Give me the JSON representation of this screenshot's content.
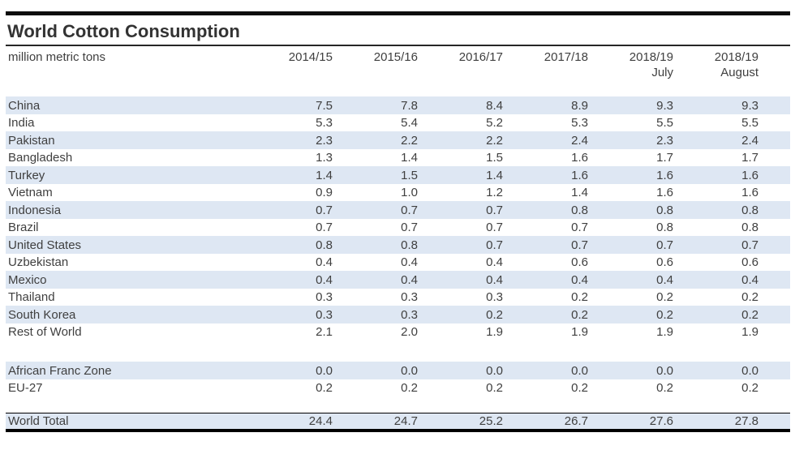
{
  "title": "World Cotton Consumption",
  "colors": {
    "row_shade": "#dee7f3",
    "text": "#3f3f3f",
    "rule_line": "#000000"
  },
  "chart_data": {
    "type": "table",
    "title": "World Cotton Consumption",
    "unit": "million metric tons",
    "column_headers": [
      {
        "year": "2014/15",
        "sub": ""
      },
      {
        "year": "2015/16",
        "sub": ""
      },
      {
        "year": "2016/17",
        "sub": ""
      },
      {
        "year": "2017/18",
        "sub": ""
      },
      {
        "year": "2018/19",
        "sub": "July"
      },
      {
        "year": "2018/19",
        "sub": "August"
      }
    ],
    "rows": [
      {
        "type": "data",
        "label": "China",
        "values": [
          "7.5",
          "7.8",
          "8.4",
          "8.9",
          "9.3",
          "9.3"
        ]
      },
      {
        "type": "data",
        "label": "India",
        "values": [
          "5.3",
          "5.4",
          "5.2",
          "5.3",
          "5.5",
          "5.5"
        ]
      },
      {
        "type": "data",
        "label": "Pakistan",
        "values": [
          "2.3",
          "2.2",
          "2.2",
          "2.4",
          "2.3",
          "2.4"
        ]
      },
      {
        "type": "data",
        "label": "Bangladesh",
        "values": [
          "1.3",
          "1.4",
          "1.5",
          "1.6",
          "1.7",
          "1.7"
        ]
      },
      {
        "type": "data",
        "label": "Turkey",
        "values": [
          "1.4",
          "1.5",
          "1.4",
          "1.6",
          "1.6",
          "1.6"
        ]
      },
      {
        "type": "data",
        "label": "Vietnam",
        "values": [
          "0.9",
          "1.0",
          "1.2",
          "1.4",
          "1.6",
          "1.6"
        ]
      },
      {
        "type": "data",
        "label": "Indonesia",
        "values": [
          "0.7",
          "0.7",
          "0.7",
          "0.8",
          "0.8",
          "0.8"
        ]
      },
      {
        "type": "data",
        "label": "Brazil",
        "values": [
          "0.7",
          "0.7",
          "0.7",
          "0.7",
          "0.8",
          "0.8"
        ]
      },
      {
        "type": "data",
        "label": "United States",
        "values": [
          "0.8",
          "0.8",
          "0.7",
          "0.7",
          "0.7",
          "0.7"
        ]
      },
      {
        "type": "data",
        "label": "Uzbekistan",
        "values": [
          "0.4",
          "0.4",
          "0.4",
          "0.6",
          "0.6",
          "0.6"
        ]
      },
      {
        "type": "data",
        "label": "Mexico",
        "values": [
          "0.4",
          "0.4",
          "0.4",
          "0.4",
          "0.4",
          "0.4"
        ]
      },
      {
        "type": "data",
        "label": "Thailand",
        "values": [
          "0.3",
          "0.3",
          "0.3",
          "0.2",
          "0.2",
          "0.2"
        ]
      },
      {
        "type": "data",
        "label": "South Korea",
        "values": [
          "0.3",
          "0.3",
          "0.2",
          "0.2",
          "0.2",
          "0.2"
        ]
      },
      {
        "type": "data",
        "label": "Rest of World",
        "values": [
          "2.1",
          "2.0",
          "1.9",
          "1.9",
          "1.9",
          "1.9"
        ]
      },
      {
        "type": "gap"
      },
      {
        "type": "data",
        "label": "African Franc Zone",
        "values": [
          "0.0",
          "0.0",
          "0.0",
          "0.0",
          "0.0",
          "0.0"
        ]
      },
      {
        "type": "data",
        "label": "EU-27",
        "values": [
          "0.2",
          "0.2",
          "0.2",
          "0.2",
          "0.2",
          "0.2"
        ]
      },
      {
        "type": "gap2"
      },
      {
        "type": "total",
        "label": "World Total",
        "values": [
          "24.4",
          "24.7",
          "25.2",
          "26.7",
          "27.6",
          "27.8"
        ]
      }
    ]
  }
}
